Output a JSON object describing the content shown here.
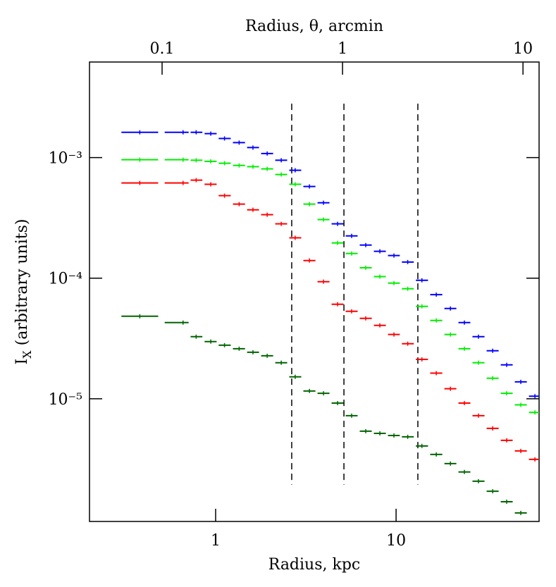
{
  "chart_data": {
    "type": "scatter",
    "xlabel": "Radius, kpc",
    "x2label": "Radius, θ, arcmin",
    "ylabel": {
      "main": "I",
      "sub": "X",
      "rest": " (arbitrary units)"
    },
    "xscale": "log",
    "yscale": "log",
    "xlim": [
      0.2,
      62
    ],
    "x2lim": [
      0.0396,
      12.28
    ],
    "ylim": [
      9.6e-07,
      0.0062
    ],
    "xticks": [
      1,
      10
    ],
    "x2ticks": [
      0.1,
      1,
      10
    ],
    "yticks": [
      {
        "value": 0.001,
        "label": "10⁻³"
      },
      {
        "value": 0.0001,
        "label": "10⁻⁴"
      },
      {
        "value": 1e-05,
        "label": "10⁻⁵"
      }
    ],
    "vlines": {
      "x": [
        2.64,
        5.14,
        13.2
      ],
      "ymin": 1.94e-06,
      "ymax": 0.0028,
      "color": "#000000",
      "dash": true
    },
    "x": [
      0.38,
      0.66,
      0.78,
      0.94,
      1.12,
      1.35,
      1.61,
      1.93,
      2.31,
      2.76,
      3.31,
      3.96,
      4.74,
      5.67,
      6.79,
      8.13,
      9.73,
      11.6,
      13.9,
      16.7,
      20.0,
      23.9,
      28.6,
      34.3,
      41.0,
      49.1,
      58.8
    ],
    "series": [
      {
        "color": "#0000ff",
        "values": [
          0.00162,
          0.00162,
          0.00162,
          0.00158,
          0.00144,
          0.00133,
          0.00121,
          0.00108,
          0.00095,
          0.000785,
          0.000576,
          0.000422,
          0.000282,
          0.000224,
          0.000188,
          0.000167,
          0.000154,
          0.000136,
          9.6e-05,
          7.3e-05,
          5.6e-05,
          4.28e-05,
          3.27e-05,
          2.5e-05,
          1.91e-05,
          1.38e-05,
          1.05e-05
        ]
      },
      {
        "color": "#00ee00",
        "values": [
          0.00096,
          0.00096,
          0.00095,
          0.00093,
          0.000898,
          0.00086,
          0.00084,
          0.000806,
          0.000724,
          0.0006,
          0.000411,
          0.000306,
          0.000196,
          0.00016,
          0.000122,
          0.000103,
          9.1e-05,
          8.17e-05,
          5.84e-05,
          4.46e-05,
          3.41e-05,
          2.6e-05,
          1.99e-05,
          1.48e-05,
          1.11e-05,
          8.9e-06,
          7.7e-06
        ]
      },
      {
        "color": "#ff0000",
        "values": [
          0.000616,
          0.000616,
          0.00065,
          0.0006,
          0.000483,
          0.000411,
          0.000369,
          0.000336,
          0.000282,
          0.000216,
          0.00014,
          9.35e-05,
          6.08e-05,
          5.31e-05,
          4.64e-05,
          4.06e-05,
          3.41e-05,
          2.86e-05,
          2.12e-05,
          1.63e-05,
          1.21e-05,
          9.2e-06,
          7.24e-06,
          5.68e-06,
          4.52e-06,
          3.69e-06,
          3.14e-06
        ]
      },
      {
        "color": "#006400",
        "values": [
          4.83e-05,
          4.28e-05,
          3.27e-05,
          2.98e-05,
          2.78e-05,
          2.6e-05,
          2.43e-05,
          2.27e-05,
          1.99e-05,
          1.52e-05,
          1.16e-05,
          1.11e-05,
          9.2e-06,
          7.24e-06,
          5.38e-06,
          5.16e-06,
          4.96e-06,
          4.83e-06,
          4.06e-06,
          3.45e-06,
          2.9e-06,
          2.47e-06,
          2.07e-06,
          1.71e-06,
          1.4e-06,
          1.13e-06,
          null
        ]
      }
    ]
  }
}
